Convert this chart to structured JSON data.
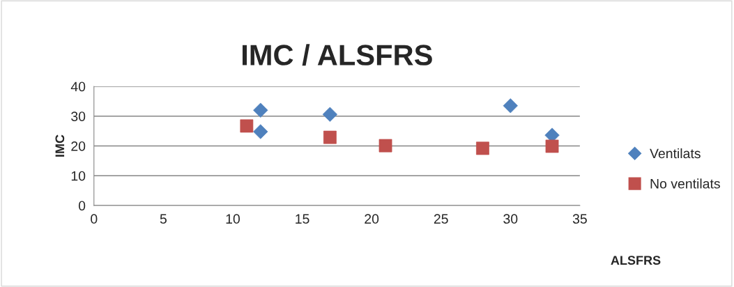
{
  "chart_data": {
    "type": "scatter",
    "title": "IMC / ALSFRS",
    "xlabel": "ALSFRS",
    "ylabel": "IMC",
    "series": [
      {
        "name": "Ventilats",
        "color": "#4f81bd",
        "marker": "diamond",
        "x": [
          12,
          12,
          17,
          30,
          33
        ],
        "values": [
          32.0,
          24.8,
          30.6,
          33.5,
          23.6
        ]
      },
      {
        "name": "No ventilats",
        "color": "#c0504d",
        "marker": "square",
        "x": [
          11,
          17,
          21,
          28,
          33
        ],
        "values": [
          26.7,
          22.9,
          20.1,
          19.2,
          19.9
        ]
      }
    ],
    "xlim": [
      0,
      35
    ],
    "xticks": [
      0,
      5,
      10,
      15,
      20,
      25,
      30,
      35
    ],
    "ylim": [
      0,
      40
    ],
    "yticks": [
      0,
      10,
      20,
      30,
      40
    ],
    "grid": "y",
    "legend": "right"
  }
}
